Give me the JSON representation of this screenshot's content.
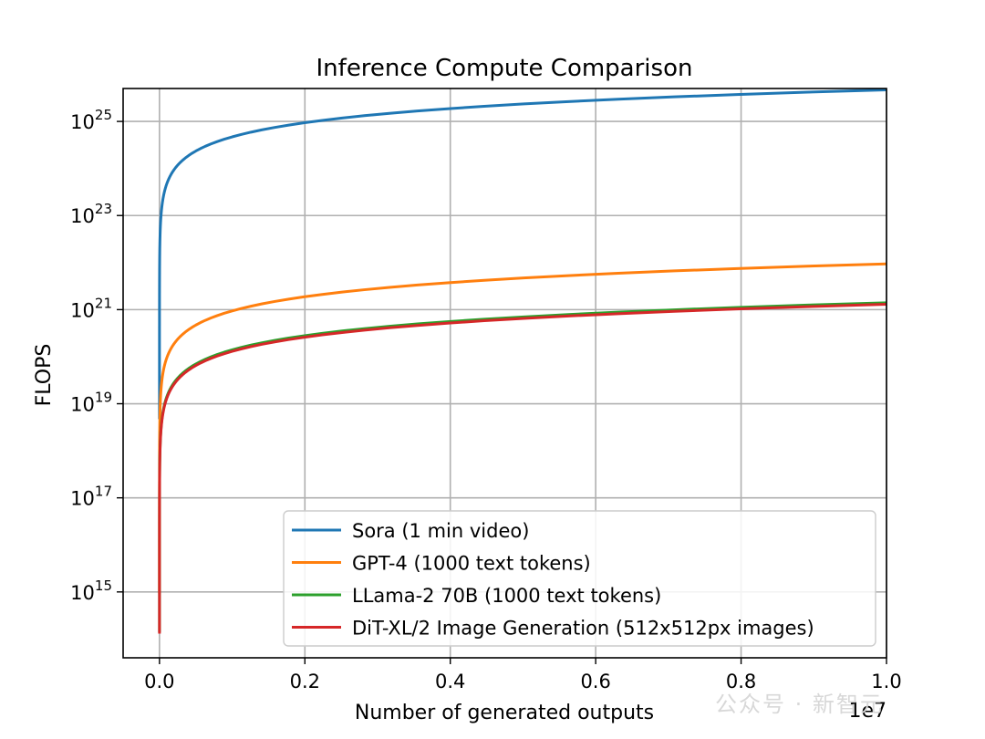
{
  "watermark": "公众号 · 新智元",
  "chart_data": {
    "type": "line",
    "title": "Inference Compute Comparison",
    "xlabel": "Number of generated outputs",
    "ylabel": "FLOPS",
    "x_offset_label": "1e7",
    "xlim": [
      -500000,
      10000000
    ],
    "ylim_log10": [
      13.6,
      25.7
    ],
    "yscale": "log",
    "grid": true,
    "legend_position": "lower-right",
    "x_ticks": [
      {
        "value": 0,
        "label": "0.0"
      },
      {
        "value": 2000000,
        "label": "0.2"
      },
      {
        "value": 4000000,
        "label": "0.4"
      },
      {
        "value": 6000000,
        "label": "0.6"
      },
      {
        "value": 8000000,
        "label": "0.8"
      },
      {
        "value": 10000000,
        "label": "1.0"
      }
    ],
    "y_ticks": [
      {
        "exp": 15,
        "base": "10",
        "sup": "15"
      },
      {
        "exp": 17,
        "base": "10",
        "sup": "17"
      },
      {
        "exp": 19,
        "base": "10",
        "sup": "19"
      },
      {
        "exp": 21,
        "base": "10",
        "sup": "21"
      },
      {
        "exp": 23,
        "base": "10",
        "sup": "23"
      },
      {
        "exp": 25,
        "base": "10",
        "sup": "25"
      }
    ],
    "series": [
      {
        "name": "Sora (1 min video)",
        "color": "#1f77b4",
        "flops_per_output": 4.7e+18
      },
      {
        "name": "GPT-4 (1000 text tokens)",
        "color": "#ff7f0e",
        "flops_per_output": 940000000000000.0
      },
      {
        "name": "LLama-2 70B (1000 text tokens)",
        "color": "#2ca02c",
        "flops_per_output": 140000000000000.0
      },
      {
        "name": "DiT-XL/2 Image Generation (512x512px images)",
        "color": "#d62728",
        "flops_per_output": 130000000000000.0
      }
    ]
  }
}
